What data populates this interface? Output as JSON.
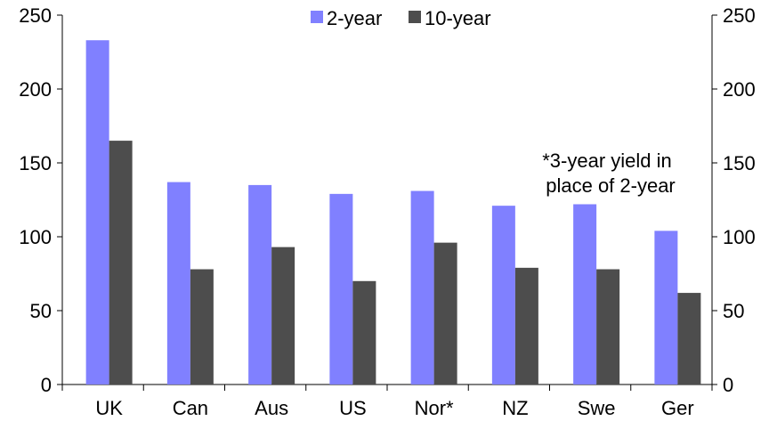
{
  "chart_data": {
    "type": "bar",
    "categories": [
      "UK",
      "Can",
      "Aus",
      "US",
      "Nor*",
      "NZ",
      "Swe",
      "Ger"
    ],
    "series": [
      {
        "name": "2-year",
        "color": "#8080ff",
        "values": [
          233,
          137,
          135,
          129,
          131,
          121,
          122,
          104
        ]
      },
      {
        "name": "10-year",
        "color": "#4d4d4d",
        "values": [
          165,
          78,
          93,
          70,
          96,
          79,
          78,
          62
        ]
      }
    ],
    "ylim": [
      0,
      250
    ],
    "yticks": [
      0,
      50,
      100,
      150,
      200,
      250
    ],
    "y_axis_both_sides": true,
    "grid": false,
    "legend_position": "top-center",
    "annotation": [
      "*3-year yield in",
      "place of 2-year"
    ]
  }
}
